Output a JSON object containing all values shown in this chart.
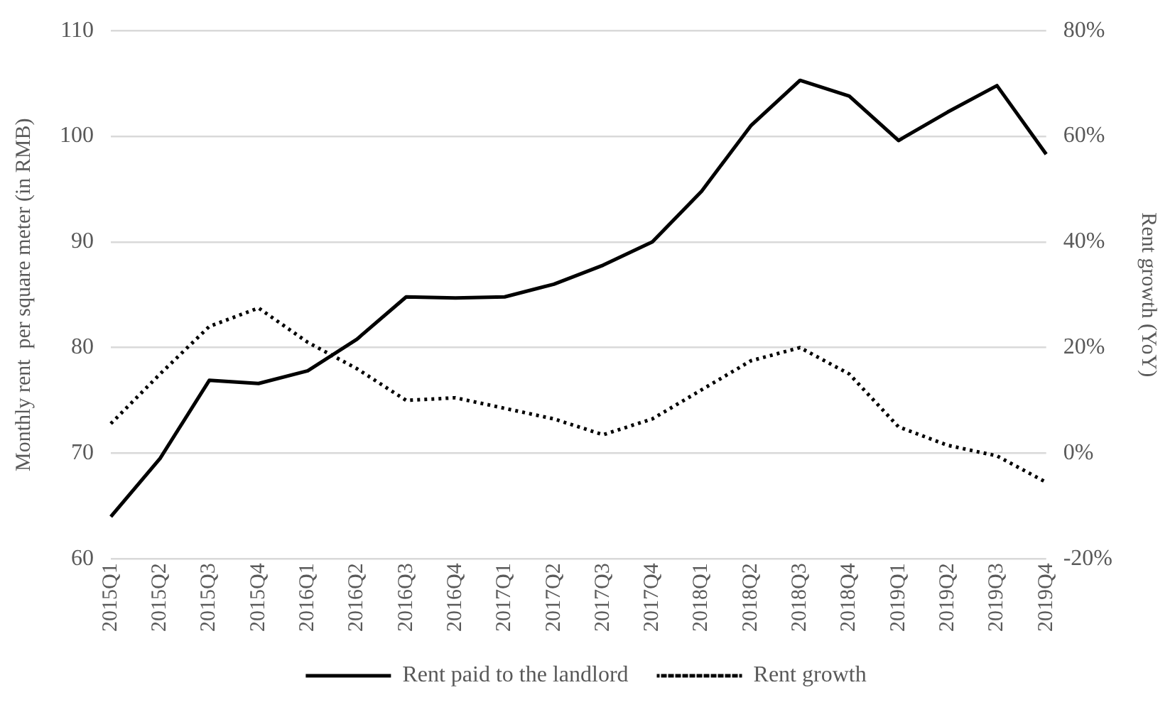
{
  "chart_data": {
    "type": "line",
    "ylabel": "Monthly rent  per square meter (in RMB)",
    "y2label": "Rent growth (YoY)",
    "categories": [
      "2015Q1",
      "2015Q2",
      "2015Q3",
      "2015Q4",
      "2016Q1",
      "2016Q2",
      "2016Q3",
      "2016Q4",
      "2017Q1",
      "2017Q2",
      "2017Q3",
      "2017Q4",
      "2018Q1",
      "2018Q2",
      "2018Q3",
      "2018Q4",
      "2019Q1",
      "2019Q2",
      "2019Q3",
      "2019Q4"
    ],
    "series": [
      {
        "name": "Rent paid to the landlord",
        "color": "#000000",
        "line_style": "solid",
        "values": [
          64,
          69.5,
          76.9,
          76.6,
          77.8,
          80.8,
          84.8,
          84.7,
          84.8,
          86,
          87.8,
          90,
          94.8,
          101,
          105.3,
          103.8,
          99.6,
          102.3,
          104.8,
          98.3
        ]
      },
      {
        "name": "Rent growth",
        "color": "#000000",
        "line_style": "dotted",
        "axis": "y2",
        "values": [
          5.6,
          15,
          24,
          27.5,
          21,
          16,
          10,
          10.5,
          8.5,
          6.5,
          3.5,
          6.5,
          12,
          17.5,
          20,
          15,
          5,
          1.5,
          -0.5,
          -5.5
        ]
      }
    ],
    "ylim": [
      60,
      110
    ],
    "yticks": [
      60,
      70,
      80,
      90,
      100,
      110
    ],
    "y2lim": [
      -20,
      80
    ],
    "y2ticks": [
      {
        "value": -20,
        "label": "-20%"
      },
      {
        "value": 0,
        "label": "0%"
      },
      {
        "value": 20,
        "label": "20%"
      },
      {
        "value": 40,
        "label": "40%"
      },
      {
        "value": 60,
        "label": "60%"
      },
      {
        "value": 80,
        "label": "80%"
      }
    ],
    "grid": "y",
    "legend": "bottom",
    "marker": "none"
  }
}
